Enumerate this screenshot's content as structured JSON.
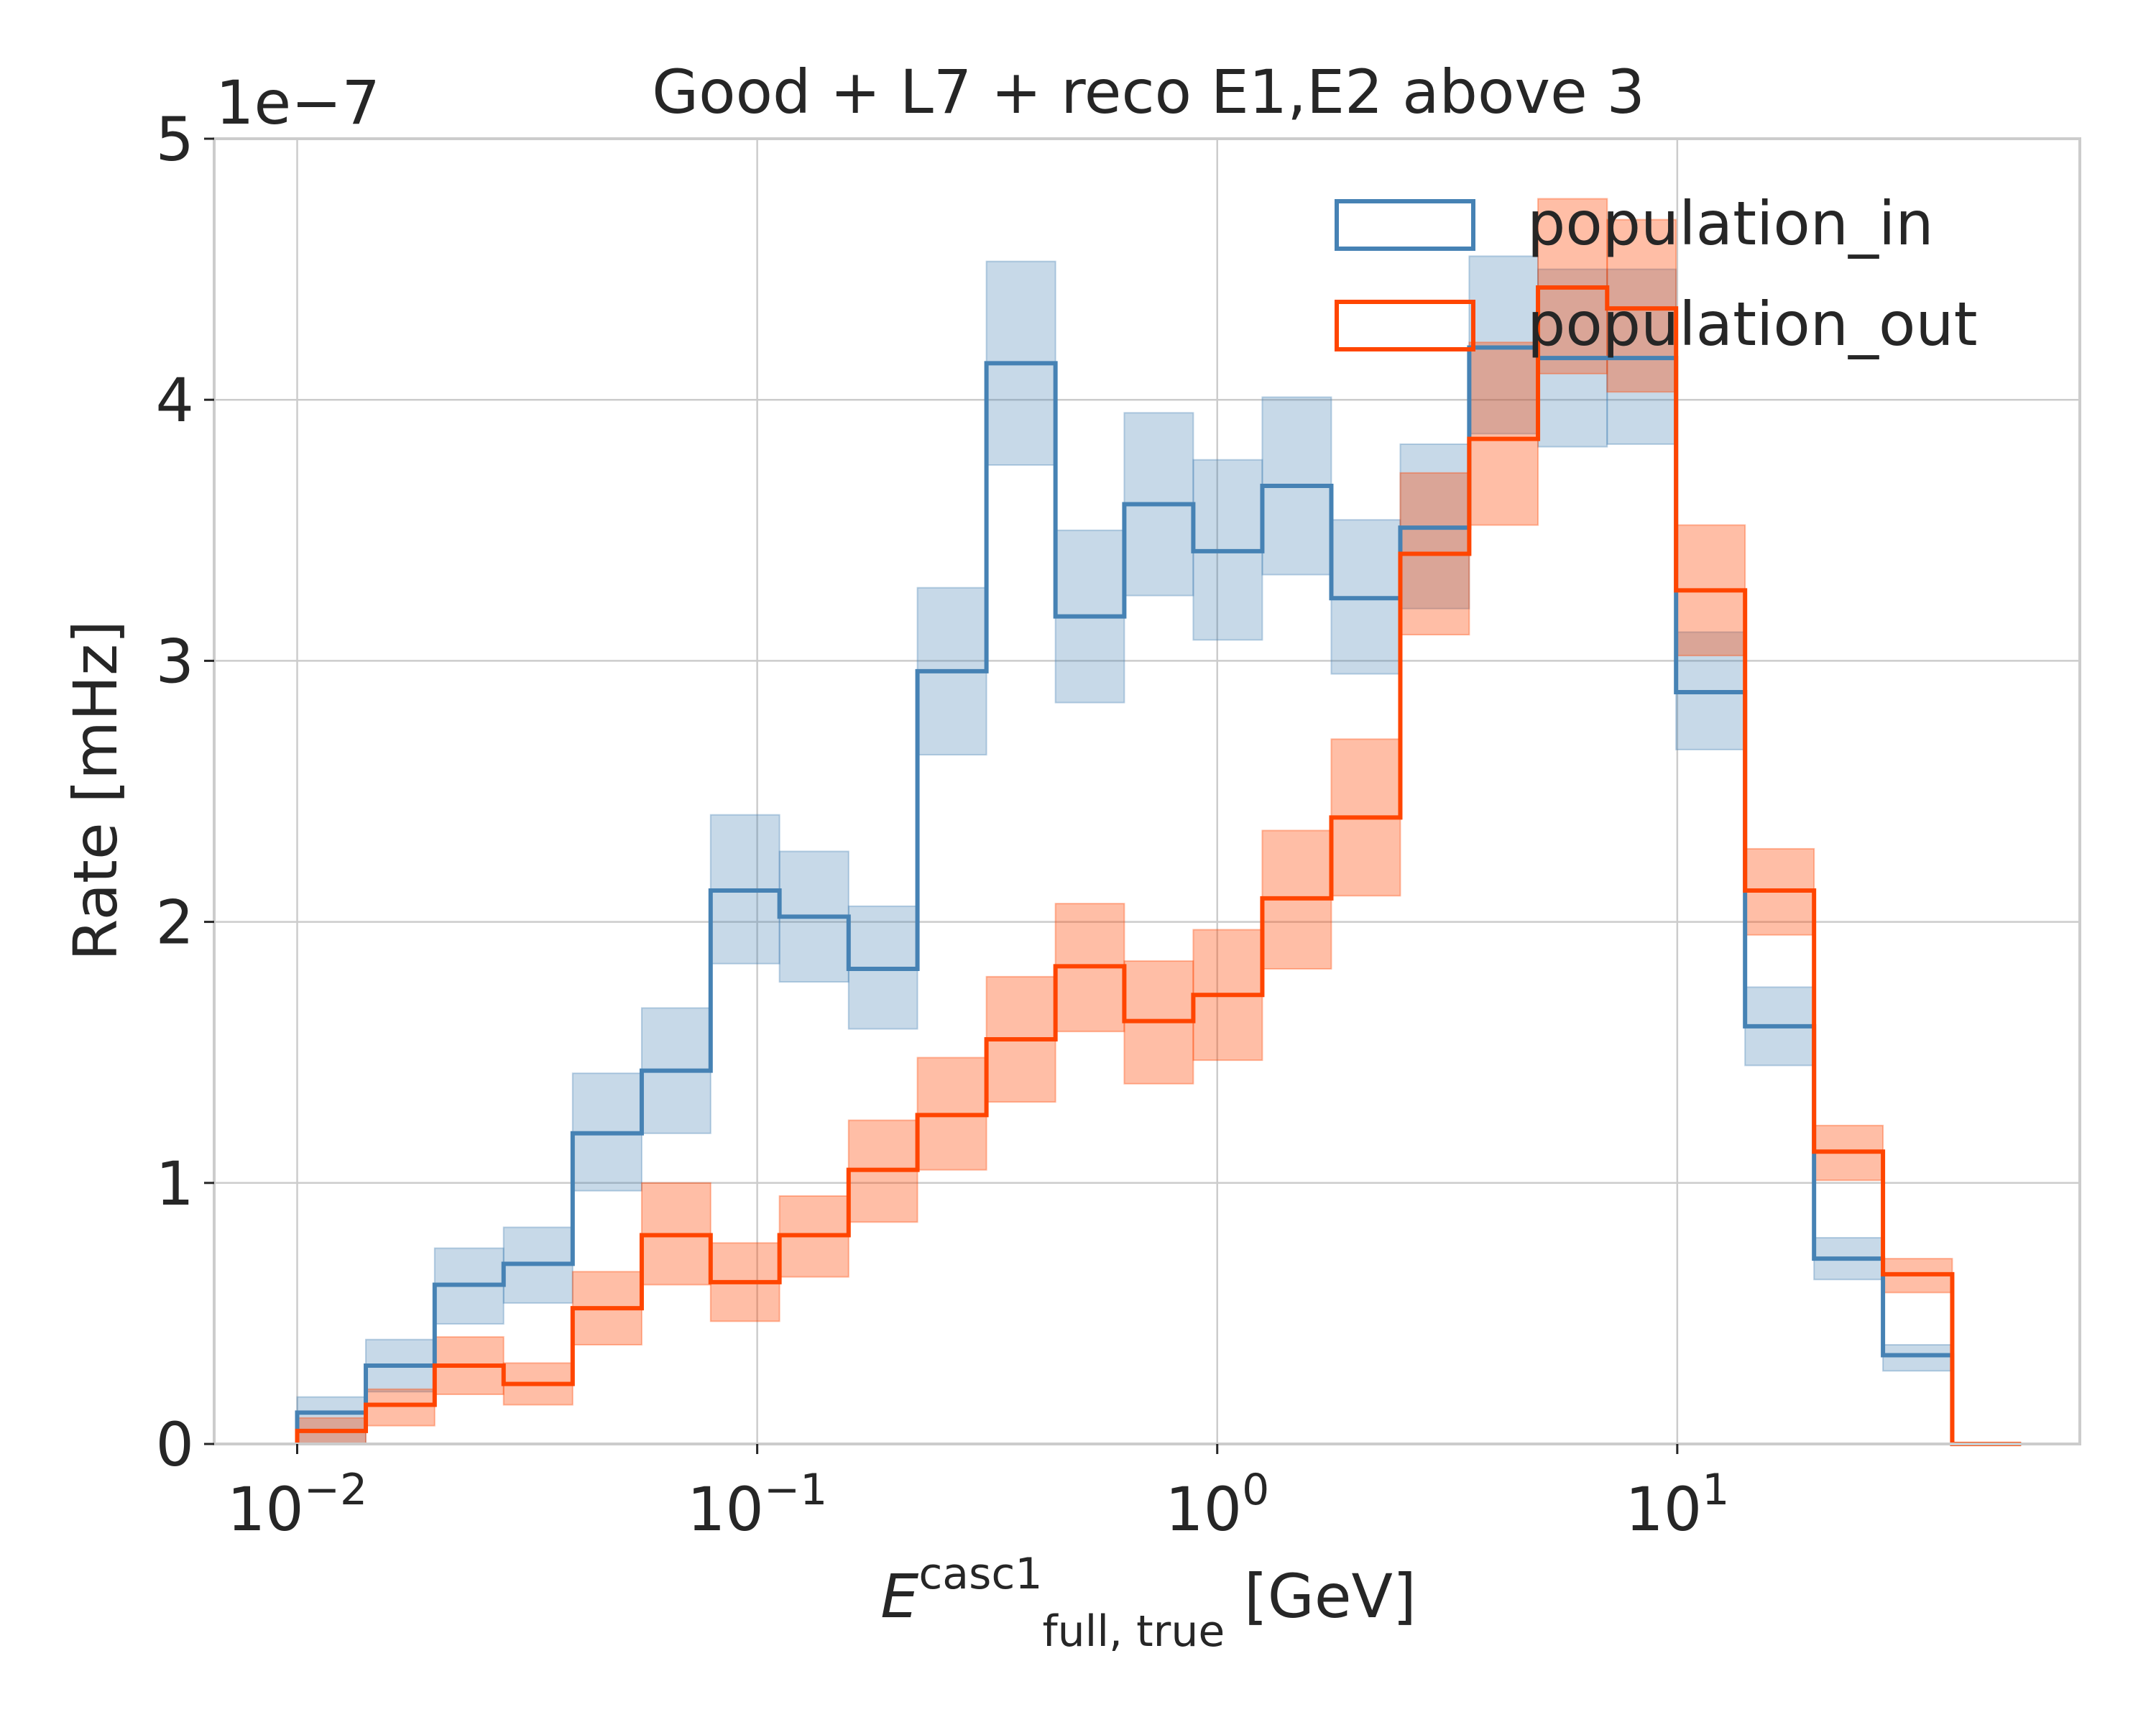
{
  "chart_data": {
    "type": "histogram-step",
    "title": "Good + L7 + reco E1,E2 above 3",
    "xlabel": {
      "main": "E",
      "sup": "casc1",
      "sub": "full, true",
      "unit": " [GeV]"
    },
    "ylabel": "Rate [mHz]",
    "x_scale": "log",
    "y_offset_text": "1e−7",
    "ylim": [
      0,
      5
    ],
    "y_ticks": [
      "0",
      "1",
      "2",
      "3",
      "4",
      "5"
    ],
    "x_ticks": [
      {
        "base": "10",
        "exp": "−2"
      },
      {
        "base": "10",
        "exp": "−1"
      },
      {
        "base": "10",
        "exp": "0"
      },
      {
        "base": "10",
        "exp": "1"
      }
    ],
    "x_tick_values": [
      0.01,
      0.1,
      1,
      10
    ],
    "xlim": [
      0.0066,
      75
    ],
    "grid": true,
    "legend_position": "top-right",
    "bin_edges": [
      0.01,
      0.0141,
      0.0199,
      0.0281,
      0.0397,
      0.0561,
      0.0792,
      0.1118,
      0.158,
      0.223,
      0.315,
      0.445,
      0.628,
      0.887,
      1.253,
      1.77,
      2.5,
      3.53,
      4.98,
      7.04,
      9.94,
      14.04,
      19.83,
      28.0,
      39.6,
      55.9
    ],
    "series": [
      {
        "name": "population_in",
        "color": "#4682b4",
        "values": [
          0.12,
          0.3,
          0.61,
          0.69,
          1.19,
          1.43,
          2.12,
          2.02,
          1.82,
          2.96,
          4.14,
          3.17,
          3.6,
          3.42,
          3.67,
          3.24,
          3.51,
          4.2,
          4.16,
          4.16,
          2.88,
          1.6,
          0.71,
          0.34,
          0.0
        ],
        "err_low": [
          0.0,
          0.2,
          0.46,
          0.54,
          0.97,
          1.19,
          1.84,
          1.77,
          1.59,
          2.64,
          3.75,
          2.84,
          3.25,
          3.08,
          3.33,
          2.95,
          3.2,
          3.87,
          3.82,
          3.83,
          2.66,
          1.45,
          0.63,
          0.28,
          0.0
        ],
        "err_high": [
          0.18,
          0.4,
          0.75,
          0.83,
          1.42,
          1.67,
          2.41,
          2.27,
          2.06,
          3.28,
          4.53,
          3.5,
          3.95,
          3.77,
          4.01,
          3.54,
          3.83,
          4.55,
          4.5,
          4.5,
          3.11,
          1.75,
          0.79,
          0.38,
          0.0
        ]
      },
      {
        "name": "population_out",
        "color": "#ff4500",
        "values": [
          0.05,
          0.15,
          0.3,
          0.23,
          0.52,
          0.8,
          0.62,
          0.8,
          1.05,
          1.26,
          1.55,
          1.83,
          1.62,
          1.72,
          2.09,
          2.4,
          3.41,
          3.85,
          4.43,
          4.35,
          3.27,
          2.12,
          1.12,
          0.65,
          0.0
        ],
        "err_low": [
          0.0,
          0.07,
          0.19,
          0.15,
          0.38,
          0.61,
          0.47,
          0.64,
          0.85,
          1.05,
          1.31,
          1.58,
          1.38,
          1.47,
          1.82,
          2.1,
          3.1,
          3.52,
          4.1,
          4.03,
          3.02,
          1.95,
          1.01,
          0.58,
          0.0
        ],
        "err_high": [
          0.1,
          0.21,
          0.41,
          0.31,
          0.66,
          1.0,
          0.77,
          0.95,
          1.24,
          1.48,
          1.79,
          2.07,
          1.85,
          1.97,
          2.35,
          2.7,
          3.72,
          4.22,
          4.77,
          4.69,
          3.52,
          2.28,
          1.22,
          0.71,
          0.0
        ]
      }
    ]
  }
}
